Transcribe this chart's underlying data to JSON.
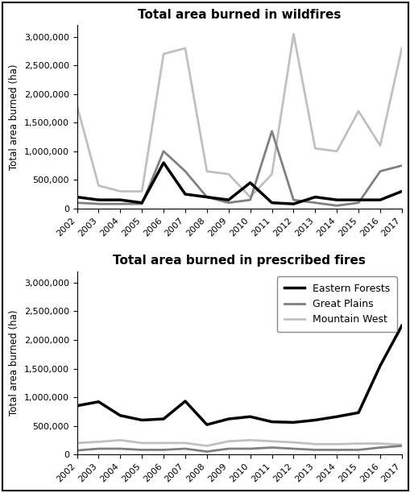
{
  "years": [
    2002,
    2003,
    2004,
    2005,
    2006,
    2007,
    2008,
    2009,
    2010,
    2011,
    2012,
    2013,
    2014,
    2015,
    2016,
    2017
  ],
  "wildfire": {
    "eastern_forests": [
      200000,
      150000,
      150000,
      100000,
      800000,
      250000,
      200000,
      150000,
      450000,
      100000,
      80000,
      200000,
      150000,
      150000,
      150000,
      300000
    ],
    "great_plains": [
      100000,
      80000,
      80000,
      80000,
      1000000,
      650000,
      200000,
      100000,
      150000,
      1350000,
      150000,
      100000,
      50000,
      100000,
      650000,
      750000
    ],
    "mountain_west": [
      1800000,
      400000,
      300000,
      300000,
      2700000,
      2800000,
      650000,
      600000,
      200000,
      600000,
      3050000,
      1050000,
      1000000,
      1700000,
      1100000,
      2800000
    ]
  },
  "prescribed": {
    "eastern_forests": [
      850000,
      920000,
      680000,
      600000,
      620000,
      930000,
      520000,
      620000,
      660000,
      570000,
      560000,
      600000,
      660000,
      730000,
      1550000,
      2250000
    ],
    "great_plains": [
      70000,
      100000,
      100000,
      80000,
      80000,
      100000,
      50000,
      100000,
      100000,
      120000,
      100000,
      80000,
      80000,
      80000,
      120000,
      150000
    ],
    "mountain_west": [
      200000,
      220000,
      250000,
      200000,
      200000,
      200000,
      150000,
      230000,
      250000,
      230000,
      210000,
      180000,
      180000,
      190000,
      190000,
      170000
    ]
  },
  "colors": {
    "eastern_forests": "#000000",
    "great_plains": "#808080",
    "mountain_west": "#c0c0c0"
  },
  "linewidths": {
    "eastern_forests": 2.5,
    "great_plains": 2.0,
    "mountain_west": 2.0
  },
  "title_wildfire": "Total area burned in wildfires",
  "title_prescribed": "Total area burned in prescribed fires",
  "ylabel": "Total area burned (ha)",
  "ylim": [
    0,
    3200000
  ],
  "yticks": [
    0,
    500000,
    1000000,
    1500000,
    2000000,
    2500000,
    3000000
  ],
  "legend_labels": [
    "Eastern Forests",
    "Great Plains",
    "Mountain West"
  ],
  "background_color": "#ffffff"
}
